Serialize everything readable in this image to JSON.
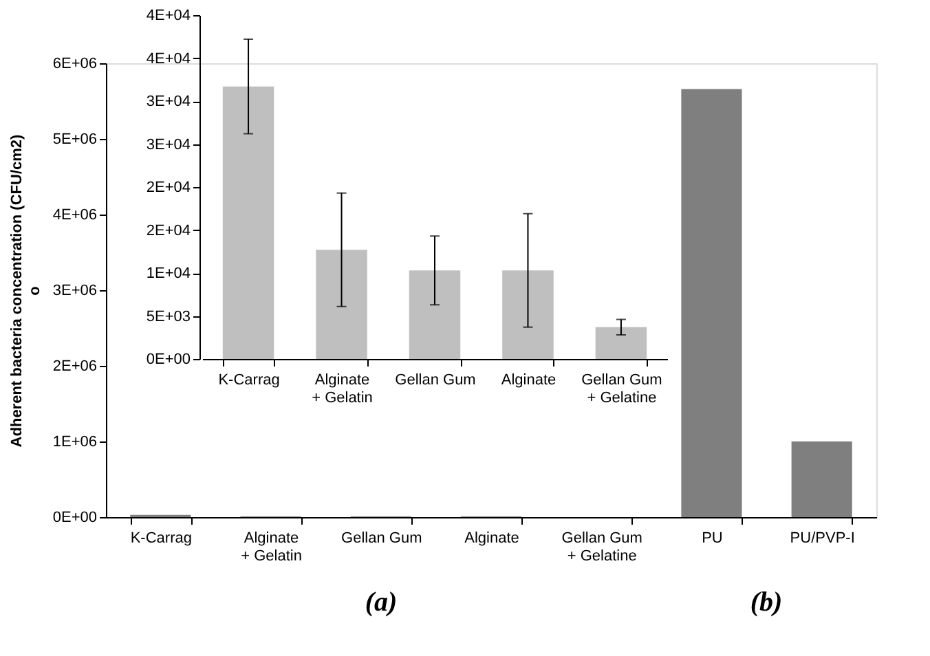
{
  "chart_data": [
    {
      "type": "bar",
      "categories": [
        "K-Carrag",
        "Alginate + Gelatin",
        "Gellan Gum",
        "Alginate",
        "Gellan Gum + Gelatine",
        "PU",
        "PU/PVP-I"
      ],
      "values": [
        30000,
        10000,
        10000,
        10000,
        0,
        5660000,
        1000000
      ],
      "colors": [
        "#7f7f7f",
        "#7f7f7f",
        "#7f7f7f",
        "#7f7f7f",
        "#7f7f7f",
        "#7f7f7f",
        "#7f7f7f"
      ],
      "ylabel": "Adherent bacteria concentration (CFU/cm2)\no",
      "ylim": [
        0,
        6000000
      ],
      "yticks": [
        {
          "value": 0,
          "label": "0E+00"
        },
        {
          "value": 1000000,
          "label": "1E+06"
        },
        {
          "value": 2000000,
          "label": "2E+06"
        },
        {
          "value": 3000000,
          "label": "3E+06"
        },
        {
          "value": 4000000,
          "label": "4E+06"
        },
        {
          "value": 5000000,
          "label": "5E+06"
        },
        {
          "value": 6000000,
          "label": "6E+06"
        }
      ],
      "annotations": [
        "(a)",
        "(b)"
      ],
      "grid": false
    },
    {
      "type": "bar",
      "categories": [
        "K-Carrag",
        "Alginate + Gelatin",
        "Gellan Gum",
        "Alginate",
        "Gellan Gum + Gelatine"
      ],
      "values": [
        31700,
        12700,
        10300,
        10300,
        3700
      ],
      "errors": [
        5500,
        6600,
        4000,
        6600,
        900
      ],
      "colors": [
        "#bfbfbf",
        "#bfbfbf",
        "#bfbfbf",
        "#bfbfbf",
        "#bfbfbf"
      ],
      "ylim": [
        0,
        40000
      ],
      "yticks": [
        {
          "value": 0,
          "label": "0E+00"
        },
        {
          "value": 5000,
          "label": "5E+03"
        },
        {
          "value": 10000,
          "label": "1E+04"
        },
        {
          "value": 15000,
          "label": "2E+04"
        },
        {
          "value": 20000,
          "label": "2E+04"
        },
        {
          "value": 25000,
          "label": "3E+04"
        },
        {
          "value": 30000,
          "label": "3E+04"
        },
        {
          "value": 35000,
          "label": "4E+04"
        },
        {
          "value": 40000,
          "label": "4E+04"
        }
      ],
      "grid": false
    }
  ]
}
